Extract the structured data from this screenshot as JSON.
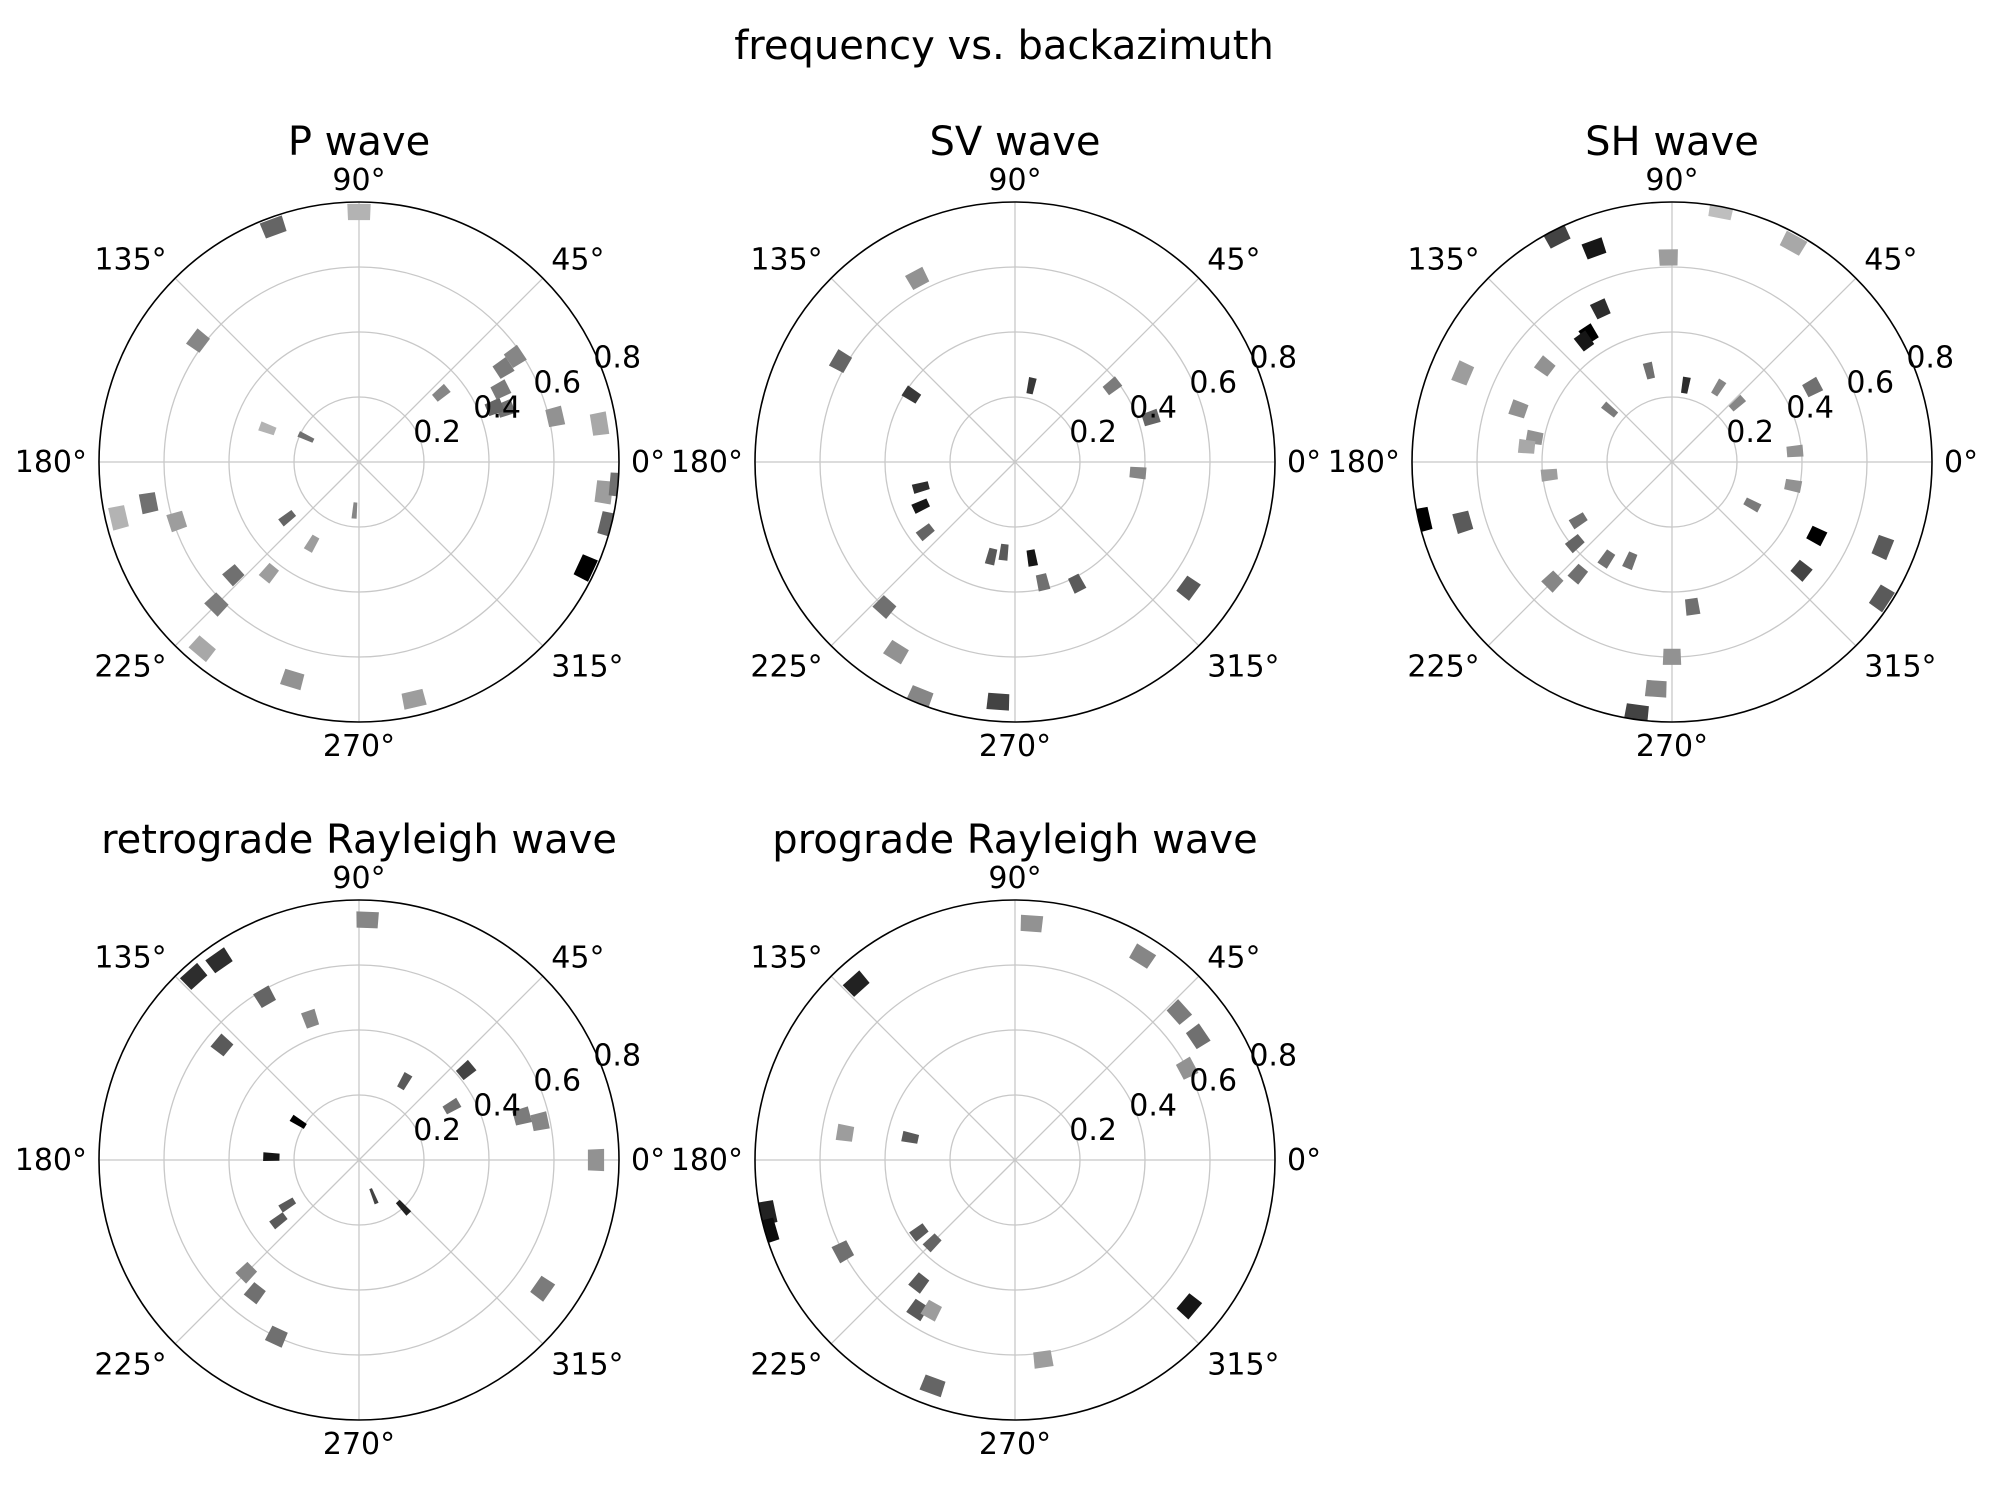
{
  "title": "frequency vs. backazimuth",
  "palette": {
    "dark": "#000000",
    "light": "#e0e0e0",
    "grid": "#c8c8c8",
    "spine": "#000000"
  },
  "chart_data": [
    {
      "type": "polar-bar",
      "title": "P wave",
      "theta_ticks": [
        "0°",
        "45°",
        "90°",
        "135°",
        "180°",
        "225°",
        "270°",
        "315°"
      ],
      "r_ticks": [
        "0.2",
        "0.4",
        "0.6",
        "0.8"
      ],
      "r_range": [
        0,
        0.8
      ],
      "grid": true,
      "bins": [
        {
          "theta": 9,
          "r": 0.75,
          "density": 0.25
        },
        {
          "theta": 13,
          "r": 0.62,
          "density": 0.35
        },
        {
          "theta": 20,
          "r": 0.48,
          "density": 0.5
        },
        {
          "theta": 22,
          "r": 0.45,
          "density": 0.55
        },
        {
          "theta": 27,
          "r": 0.49,
          "density": 0.45
        },
        {
          "theta": 33,
          "r": 0.53,
          "density": 0.45
        },
        {
          "theta": 34,
          "r": 0.58,
          "density": 0.4
        },
        {
          "theta": 40,
          "r": 0.33,
          "density": 0.4
        },
        {
          "theta": 90,
          "r": 0.77,
          "density": 0.2
        },
        {
          "theta": 110,
          "r": 0.77,
          "density": 0.55
        },
        {
          "theta": 143,
          "r": 0.62,
          "density": 0.4
        },
        {
          "theta": 155,
          "r": 0.18,
          "density": 0.5
        },
        {
          "theta": 160,
          "r": 0.3,
          "density": 0.2
        },
        {
          "theta": 191,
          "r": 0.66,
          "density": 0.5
        },
        {
          "theta": 193,
          "r": 0.76,
          "density": 0.2
        },
        {
          "theta": 198,
          "r": 0.59,
          "density": 0.3
        },
        {
          "theta": 218,
          "r": 0.28,
          "density": 0.55
        },
        {
          "theta": 222,
          "r": 0.52,
          "density": 0.5
        },
        {
          "theta": 225,
          "r": 0.62,
          "density": 0.45
        },
        {
          "theta": 230,
          "r": 0.75,
          "density": 0.25
        },
        {
          "theta": 231,
          "r": 0.44,
          "density": 0.3
        },
        {
          "theta": 240,
          "r": 0.29,
          "density": 0.3
        },
        {
          "theta": 253,
          "r": 0.7,
          "density": 0.35
        },
        {
          "theta": 265,
          "r": 0.15,
          "density": 0.4
        },
        {
          "theta": 283,
          "r": 0.75,
          "density": 0.3
        },
        {
          "theta": 335,
          "r": 0.77,
          "density": 1.0
        },
        {
          "theta": 346,
          "r": 0.79,
          "density": 0.55
        },
        {
          "theta": 353,
          "r": 0.76,
          "density": 0.3
        },
        {
          "theta": 355,
          "r": 0.8,
          "density": 0.5
        }
      ]
    },
    {
      "type": "polar-bar",
      "title": "SV wave",
      "theta_ticks": [
        "0°",
        "45°",
        "90°",
        "135°",
        "180°",
        "225°",
        "270°",
        "315°"
      ],
      "r_ticks": [
        "0.2",
        "0.4",
        "0.6",
        "0.8"
      ],
      "r_range": [
        0,
        0.8
      ],
      "grid": true,
      "bins": [
        {
          "theta": 355,
          "r": 0.38,
          "density": 0.4
        },
        {
          "theta": 18,
          "r": 0.44,
          "density": 0.55
        },
        {
          "theta": 38,
          "r": 0.38,
          "density": 0.45
        },
        {
          "theta": 78,
          "r": 0.24,
          "density": 0.75
        },
        {
          "theta": 118,
          "r": 0.64,
          "density": 0.35
        },
        {
          "theta": 147,
          "r": 0.38,
          "density": 0.75
        },
        {
          "theta": 150,
          "r": 0.62,
          "density": 0.55
        },
        {
          "theta": 195,
          "r": 0.3,
          "density": 0.8
        },
        {
          "theta": 205,
          "r": 0.32,
          "density": 0.9
        },
        {
          "theta": 218,
          "r": 0.35,
          "density": 0.55
        },
        {
          "theta": 228,
          "r": 0.6,
          "density": 0.5
        },
        {
          "theta": 238,
          "r": 0.69,
          "density": 0.35
        },
        {
          "theta": 248,
          "r": 0.78,
          "density": 0.4
        },
        {
          "theta": 256,
          "r": 0.3,
          "density": 0.6
        },
        {
          "theta": 263,
          "r": 0.28,
          "density": 0.6
        },
        {
          "theta": 266,
          "r": 0.74,
          "density": 0.7
        },
        {
          "theta": 280,
          "r": 0.3,
          "density": 0.9
        },
        {
          "theta": 283,
          "r": 0.38,
          "density": 0.5
        },
        {
          "theta": 297,
          "r": 0.42,
          "density": 0.6
        },
        {
          "theta": 324,
          "r": 0.66,
          "density": 0.6
        }
      ]
    },
    {
      "type": "polar-bar",
      "title": "SH wave",
      "theta_ticks": [
        "0°",
        "45°",
        "90°",
        "135°",
        "180°",
        "225°",
        "270°",
        "315°"
      ],
      "r_ticks": [
        "0.2",
        "0.4",
        "0.6",
        "0.8"
      ],
      "r_range": [
        0,
        0.8
      ],
      "grid": true,
      "bins": [
        {
          "theta": 5,
          "r": 0.38,
          "density": 0.35
        },
        {
          "theta": 28,
          "r": 0.49,
          "density": 0.5
        },
        {
          "theta": 42,
          "r": 0.27,
          "density": 0.4
        },
        {
          "theta": 61,
          "r": 0.77,
          "density": 0.25
        },
        {
          "theta": 79,
          "r": 0.79,
          "density": 0.15
        },
        {
          "theta": 58,
          "r": 0.27,
          "density": 0.4
        },
        {
          "theta": 80,
          "r": 0.24,
          "density": 0.8
        },
        {
          "theta": 91,
          "r": 0.63,
          "density": 0.3
        },
        {
          "theta": 104,
          "r": 0.29,
          "density": 0.5
        },
        {
          "theta": 110,
          "r": 0.7,
          "density": 0.9
        },
        {
          "theta": 115,
          "r": 0.52,
          "density": 0.8
        },
        {
          "theta": 117,
          "r": 0.78,
          "density": 0.7
        },
        {
          "theta": 123,
          "r": 0.47,
          "density": 1.0
        },
        {
          "theta": 126,
          "r": 0.46,
          "density": 0.9
        },
        {
          "theta": 140,
          "r": 0.25,
          "density": 0.45
        },
        {
          "theta": 143,
          "r": 0.49,
          "density": 0.35
        },
        {
          "theta": 157,
          "r": 0.7,
          "density": 0.3
        },
        {
          "theta": 161,
          "r": 0.5,
          "density": 0.35
        },
        {
          "theta": 170,
          "r": 0.43,
          "density": 0.35
        },
        {
          "theta": 174,
          "r": 0.45,
          "density": 0.25
        },
        {
          "theta": 186,
          "r": 0.38,
          "density": 0.3
        },
        {
          "theta": 193,
          "r": 0.79,
          "density": 1.0
        },
        {
          "theta": 196,
          "r": 0.67,
          "density": 0.6
        },
        {
          "theta": 212,
          "r": 0.34,
          "density": 0.5
        },
        {
          "theta": 220,
          "r": 0.39,
          "density": 0.55
        },
        {
          "theta": 225,
          "r": 0.52,
          "density": 0.4
        },
        {
          "theta": 230,
          "r": 0.45,
          "density": 0.5
        },
        {
          "theta": 236,
          "r": 0.36,
          "density": 0.5
        },
        {
          "theta": 247,
          "r": 0.33,
          "density": 0.5
        },
        {
          "theta": 262,
          "r": 0.78,
          "density": 0.7
        },
        {
          "theta": 266,
          "r": 0.7,
          "density": 0.4
        },
        {
          "theta": 270,
          "r": 0.6,
          "density": 0.35
        },
        {
          "theta": 278,
          "r": 0.45,
          "density": 0.5
        },
        {
          "theta": 320,
          "r": 0.52,
          "density": 0.7
        },
        {
          "theta": 327,
          "r": 0.77,
          "density": 0.6
        },
        {
          "theta": 332,
          "r": 0.28,
          "density": 0.45
        },
        {
          "theta": 333,
          "r": 0.5,
          "density": 1.0
        },
        {
          "theta": 338,
          "r": 0.7,
          "density": 0.6
        },
        {
          "theta": 349,
          "r": 0.38,
          "density": 0.35
        }
      ]
    },
    {
      "type": "polar-bar",
      "title": "retrograde Rayleigh wave",
      "theta_ticks": [
        "0°",
        "45°",
        "90°",
        "135°",
        "180°",
        "225°",
        "270°",
        "315°"
      ],
      "r_ticks": [
        "0.2",
        "0.4",
        "0.6",
        "0.8"
      ],
      "r_range": [
        0,
        0.8
      ],
      "grid": true,
      "bins": [
        {
          "theta": 0,
          "r": 0.73,
          "density": 0.35
        },
        {
          "theta": 12,
          "r": 0.57,
          "density": 0.4
        },
        {
          "theta": 15,
          "r": 0.52,
          "density": 0.45
        },
        {
          "theta": 30,
          "r": 0.33,
          "density": 0.5
        },
        {
          "theta": 40,
          "r": 0.43,
          "density": 0.7
        },
        {
          "theta": 60,
          "r": 0.28,
          "density": 0.6
        },
        {
          "theta": 88,
          "r": 0.74,
          "density": 0.4
        },
        {
          "theta": 109,
          "r": 0.46,
          "density": 0.4
        },
        {
          "theta": 120,
          "r": 0.58,
          "density": 0.55
        },
        {
          "theta": 125,
          "r": 0.75,
          "density": 0.8
        },
        {
          "theta": 132,
          "r": 0.76,
          "density": 0.8
        },
        {
          "theta": 140,
          "r": 0.55,
          "density": 0.6
        },
        {
          "theta": 148,
          "r": 0.22,
          "density": 1.0
        },
        {
          "theta": 178,
          "r": 0.27,
          "density": 0.9
        },
        {
          "theta": 212,
          "r": 0.26,
          "density": 0.6
        },
        {
          "theta": 217,
          "r": 0.31,
          "density": 0.6
        },
        {
          "theta": 225,
          "r": 0.49,
          "density": 0.4
        },
        {
          "theta": 232,
          "r": 0.52,
          "density": 0.5
        },
        {
          "theta": 245,
          "r": 0.6,
          "density": 0.5
        },
        {
          "theta": 292,
          "r": 0.12,
          "density": 0.7
        },
        {
          "theta": 313,
          "r": 0.2,
          "density": 0.85
        },
        {
          "theta": 325,
          "r": 0.69,
          "density": 0.45
        }
      ]
    },
    {
      "type": "polar-bar",
      "title": "prograde Rayleigh wave",
      "theta_ticks": [
        "0°",
        "45°",
        "90°",
        "135°",
        "180°",
        "225°",
        "270°",
        "315°"
      ],
      "r_ticks": [
        "0.2",
        "0.4",
        "0.6",
        "0.8"
      ],
      "r_range": [
        0,
        0.8
      ],
      "grid": true,
      "bins": [
        {
          "theta": 28,
          "r": 0.6,
          "density": 0.35
        },
        {
          "theta": 34,
          "r": 0.68,
          "density": 0.5
        },
        {
          "theta": 42,
          "r": 0.68,
          "density": 0.45
        },
        {
          "theta": 58,
          "r": 0.74,
          "density": 0.4
        },
        {
          "theta": 86,
          "r": 0.73,
          "density": 0.35
        },
        {
          "theta": 132,
          "r": 0.73,
          "density": 0.85
        },
        {
          "theta": 168,
          "r": 0.33,
          "density": 0.6
        },
        {
          "theta": 171,
          "r": 0.53,
          "density": 0.3
        },
        {
          "theta": 192,
          "r": 0.78,
          "density": 0.85
        },
        {
          "theta": 196,
          "r": 0.79,
          "density": 0.95
        },
        {
          "theta": 208,
          "r": 0.6,
          "density": 0.5
        },
        {
          "theta": 217,
          "r": 0.37,
          "density": 0.6
        },
        {
          "theta": 225,
          "r": 0.36,
          "density": 0.55
        },
        {
          "theta": 232,
          "r": 0.48,
          "density": 0.6
        },
        {
          "theta": 237,
          "r": 0.55,
          "density": 0.6
        },
        {
          "theta": 241,
          "r": 0.53,
          "density": 0.3
        },
        {
          "theta": 250,
          "r": 0.74,
          "density": 0.55
        },
        {
          "theta": 278,
          "r": 0.62,
          "density": 0.3
        },
        {
          "theta": 320,
          "r": 0.7,
          "density": 0.9
        }
      ]
    }
  ]
}
